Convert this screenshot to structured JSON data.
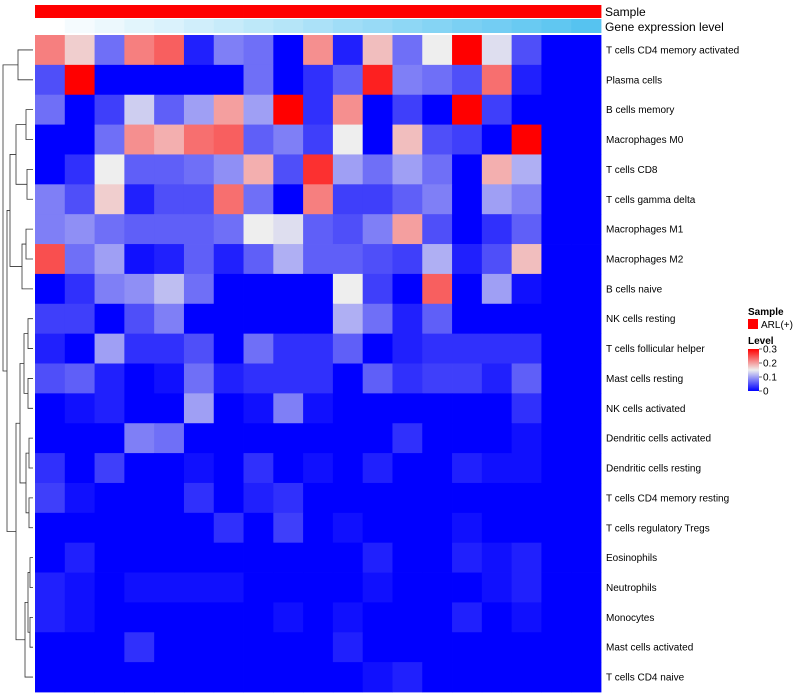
{
  "chart_data": {
    "type": "heatmap",
    "rows": [
      "T cells CD4 memory activated",
      "Plasma cells",
      "B cells memory",
      "Macrophages M0",
      "T cells CD8",
      "T cells gamma delta",
      "Macrophages M1",
      "Macrophages M2",
      "B cells naive",
      "NK cells resting",
      "T cells follicular helper",
      "Mast cells resting",
      "NK cells activated",
      "Dendritic cells activated",
      "Dendritic cells resting",
      "T cells CD4 memory resting",
      "T cells regulatory  Tregs",
      "Eosinophils",
      "Neutrophils",
      "Monocytes",
      "Mast cells activated",
      "T cells CD4 naive"
    ],
    "n_columns": 19,
    "values": [
      [
        0.22,
        0.17,
        0.07,
        0.22,
        0.24,
        0.02,
        0.08,
        0.07,
        0.0,
        0.21,
        0.02,
        0.18,
        0.07,
        0.15,
        0.3,
        0.14,
        0.05,
        0.0,
        0.0
      ],
      [
        0.05,
        0.3,
        0.0,
        0.0,
        0.0,
        0.0,
        0.0,
        0.07,
        0.0,
        0.03,
        0.06,
        0.28,
        0.08,
        0.07,
        0.05,
        0.23,
        0.02,
        0.0,
        0.0
      ],
      [
        0.07,
        0.0,
        0.04,
        0.13,
        0.06,
        0.1,
        0.2,
        0.1,
        0.3,
        0.03,
        0.21,
        0.0,
        0.04,
        0.0,
        0.3,
        0.04,
        0.0,
        0.0,
        0.0
      ],
      [
        0.0,
        0.0,
        0.07,
        0.21,
        0.19,
        0.23,
        0.24,
        0.06,
        0.08,
        0.04,
        0.15,
        0.0,
        0.18,
        0.05,
        0.04,
        0.0,
        0.3,
        0.0,
        0.0
      ],
      [
        0.0,
        0.03,
        0.15,
        0.06,
        0.06,
        0.07,
        0.09,
        0.19,
        0.05,
        0.27,
        0.1,
        0.07,
        0.1,
        0.07,
        0.0,
        0.19,
        0.11,
        0.0,
        0.0
      ],
      [
        0.08,
        0.05,
        0.17,
        0.02,
        0.05,
        0.05,
        0.23,
        0.07,
        0.0,
        0.22,
        0.04,
        0.04,
        0.06,
        0.08,
        0.0,
        0.1,
        0.08,
        0.0,
        0.0
      ],
      [
        0.08,
        0.09,
        0.07,
        0.06,
        0.06,
        0.06,
        0.07,
        0.15,
        0.14,
        0.06,
        0.05,
        0.08,
        0.2,
        0.05,
        0.0,
        0.03,
        0.06,
        0.0,
        0.0
      ],
      [
        0.25,
        0.07,
        0.1,
        0.01,
        0.02,
        0.06,
        0.02,
        0.06,
        0.11,
        0.06,
        0.06,
        0.05,
        0.04,
        0.11,
        0.02,
        0.05,
        0.18,
        0.0,
        0.0
      ],
      [
        0.0,
        0.03,
        0.08,
        0.09,
        0.12,
        0.07,
        0.0,
        0.0,
        0.0,
        0.0,
        0.15,
        0.04,
        0.0,
        0.24,
        0.0,
        0.1,
        0.01,
        0.0,
        0.0
      ],
      [
        0.04,
        0.04,
        0.0,
        0.05,
        0.08,
        0.0,
        0.0,
        0.0,
        0.0,
        0.0,
        0.11,
        0.07,
        0.02,
        0.06,
        0.0,
        0.0,
        0.0,
        0.0,
        0.0
      ],
      [
        0.02,
        0.0,
        0.1,
        0.03,
        0.03,
        0.05,
        0.0,
        0.07,
        0.03,
        0.03,
        0.06,
        0.0,
        0.02,
        0.03,
        0.03,
        0.03,
        0.03,
        0.0,
        0.0
      ],
      [
        0.05,
        0.06,
        0.02,
        0.0,
        0.01,
        0.07,
        0.02,
        0.03,
        0.03,
        0.03,
        0.0,
        0.06,
        0.03,
        0.04,
        0.04,
        0.02,
        0.06,
        0.0,
        0.0
      ],
      [
        0.0,
        0.01,
        0.02,
        0.0,
        0.0,
        0.1,
        0.0,
        0.01,
        0.08,
        0.01,
        0.0,
        0.0,
        0.0,
        0.0,
        0.0,
        0.0,
        0.03,
        0.0,
        0.0
      ],
      [
        0.0,
        0.0,
        0.0,
        0.08,
        0.07,
        0.0,
        0.0,
        0.0,
        0.0,
        0.0,
        0.0,
        0.0,
        0.03,
        0.0,
        0.0,
        0.0,
        0.01,
        0.0,
        0.0
      ],
      [
        0.03,
        0.0,
        0.04,
        0.0,
        0.0,
        0.01,
        0.0,
        0.03,
        0.0,
        0.01,
        0.0,
        0.02,
        0.0,
        0.0,
        0.02,
        0.01,
        0.01,
        0.0,
        0.0
      ],
      [
        0.04,
        0.01,
        0.0,
        0.0,
        0.0,
        0.03,
        0.0,
        0.02,
        0.03,
        0.0,
        0.0,
        0.0,
        0.0,
        0.0,
        0.0,
        0.0,
        0.0,
        0.0,
        0.0
      ],
      [
        0.0,
        0.0,
        0.0,
        0.0,
        0.0,
        0.0,
        0.03,
        0.0,
        0.04,
        0.0,
        0.01,
        0.0,
        0.0,
        0.0,
        0.01,
        0.0,
        0.0,
        0.0,
        0.0
      ],
      [
        0.0,
        0.02,
        0.0,
        0.0,
        0.0,
        0.0,
        0.0,
        0.0,
        0.0,
        0.0,
        0.0,
        0.02,
        0.0,
        0.0,
        0.02,
        0.01,
        0.02,
        0.0,
        0.0
      ],
      [
        0.02,
        0.01,
        0.0,
        0.01,
        0.01,
        0.01,
        0.01,
        0.0,
        0.0,
        0.0,
        0.0,
        0.01,
        0.0,
        0.0,
        0.0,
        0.01,
        0.02,
        0.0,
        0.0
      ],
      [
        0.02,
        0.01,
        0.0,
        0.0,
        0.0,
        0.0,
        0.0,
        0.0,
        0.01,
        0.0,
        0.01,
        0.0,
        0.0,
        0.0,
        0.02,
        0.0,
        0.01,
        0.0,
        0.0
      ],
      [
        0.0,
        0.0,
        0.0,
        0.03,
        0.0,
        0.0,
        0.0,
        0.0,
        0.0,
        0.0,
        0.02,
        0.0,
        0.0,
        0.0,
        0.0,
        0.0,
        0.0,
        0.0,
        0.0
      ],
      [
        0.0,
        0.0,
        0.0,
        0.0,
        0.0,
        0.0,
        0.0,
        0.0,
        0.0,
        0.0,
        0.0,
        0.01,
        0.02,
        0.0,
        0.0,
        0.0,
        0.0,
        0.0,
        0.0
      ]
    ],
    "color_scale": {
      "stops": [
        {
          "value": 0,
          "color": "#0000ff"
        },
        {
          "value": 0.15,
          "color": "#eeeeee"
        },
        {
          "value": 0.3,
          "color": "#ff0000"
        }
      ],
      "range": [
        0,
        0.3
      ]
    },
    "annotations": [
      {
        "label": "Sample",
        "values": [
          "ARL(+)",
          "ARL(+)",
          "ARL(+)",
          "ARL(+)",
          "ARL(+)",
          "ARL(+)",
          "ARL(+)",
          "ARL(+)",
          "ARL(+)",
          "ARL(+)",
          "ARL(+)",
          "ARL(+)",
          "ARL(+)",
          "ARL(+)",
          "ARL(+)",
          "ARL(+)",
          "ARL(+)",
          "ARL(+)",
          "ARL(+)"
        ],
        "color": "#ff0000"
      },
      {
        "label": "Gene expression level",
        "values": [
          0.0,
          0.06,
          0.11,
          0.17,
          0.22,
          0.28,
          0.33,
          0.39,
          0.44,
          0.5,
          0.56,
          0.61,
          0.67,
          0.72,
          0.78,
          0.83,
          0.89,
          0.94,
          1.0
        ],
        "low_color": "#ffffff",
        "high_color": "#56c3f0"
      }
    ],
    "row_dendrogram": true,
    "legend": {
      "position": "right",
      "sample_title": "Sample",
      "sample_entry": "ARL(+)",
      "level_title": "Level",
      "level_ticks": [
        "0.3",
        "0.2",
        "0.1",
        "0"
      ],
      "level_tick_values": [
        0.3,
        0.2,
        0.1,
        0
      ]
    }
  }
}
